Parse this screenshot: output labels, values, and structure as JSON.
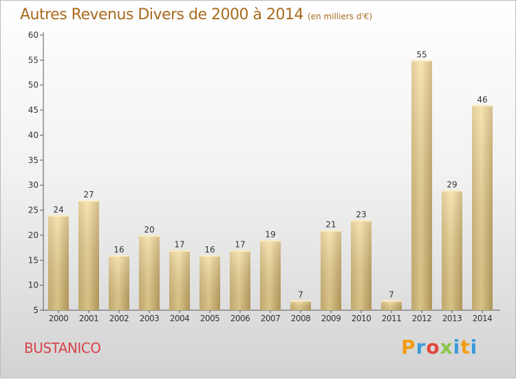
{
  "header": {
    "title": "Autres Revenus Divers de 2000 à 2014",
    "unit": "(en milliers d'€)"
  },
  "footer": {
    "city": "BUSTANICO",
    "brand": "Proxiti",
    "brand_colors": [
      "#f39c12",
      "#3a9bd9",
      "#e2453c",
      "#8bc34a",
      "#3a9bd9",
      "#f39c12",
      "#3a9bd9"
    ]
  },
  "colors": {
    "title": "#a86a1e",
    "city": "#d8424a",
    "bar_light": "#f7e2a4",
    "bar_dark": "#c9ad6c"
  },
  "chart_data": {
    "type": "bar",
    "categories": [
      "2000",
      "2001",
      "2002",
      "2003",
      "2004",
      "2005",
      "2006",
      "2007",
      "2008",
      "2009",
      "2010",
      "2011",
      "2012",
      "2013",
      "2014"
    ],
    "values": [
      24,
      27,
      16,
      20,
      17,
      16,
      17,
      19,
      7,
      21,
      23,
      7,
      55,
      29,
      46
    ],
    "title": "Autres Revenus Divers de 2000 à 2014",
    "subtitle": "(en milliers d'€)",
    "xlabel": "",
    "ylabel": "",
    "ylim": [
      5,
      60
    ],
    "yticks": [
      5,
      10,
      15,
      20,
      25,
      30,
      35,
      40,
      45,
      50,
      55,
      60
    ],
    "grid": false,
    "data_labels": true
  }
}
